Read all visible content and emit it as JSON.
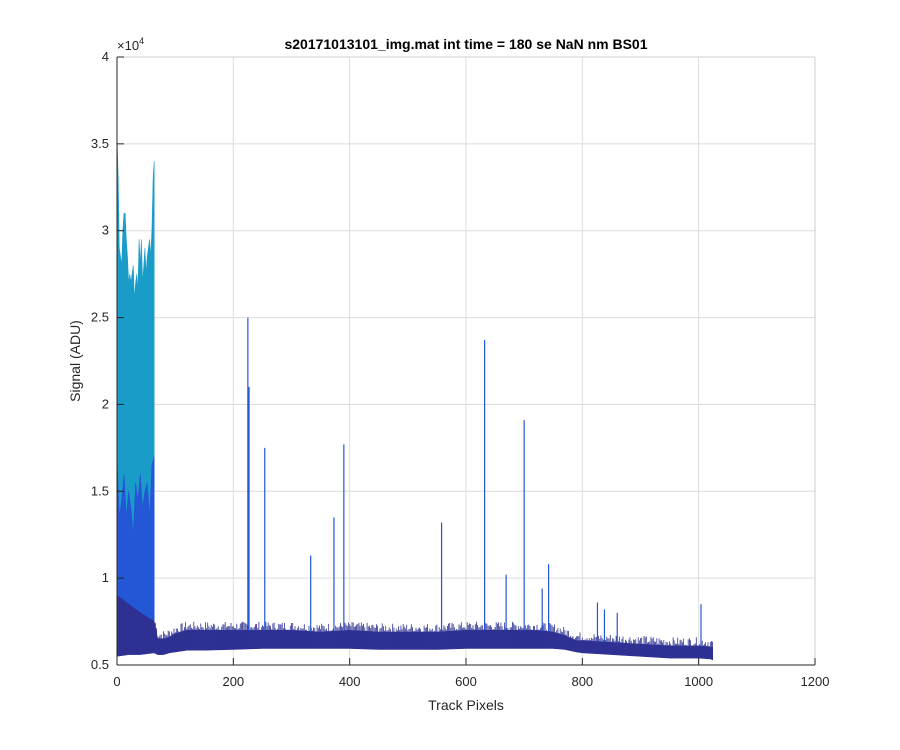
{
  "chart_data": {
    "type": "area",
    "title": "s20171013101_img.mat int time = 180 se  NaN nm BS01",
    "xlabel": "Track Pixels",
    "ylabel": "Signal (ADU)",
    "xlim": [
      0,
      1200
    ],
    "ylim": [
      5000,
      40000
    ],
    "x_ticks": [
      0,
      200,
      400,
      600,
      800,
      1000,
      1200
    ],
    "x_tick_labels": [
      "0",
      "200",
      "400",
      "600",
      "800",
      "1000",
      "1200"
    ],
    "y_ticks": [
      5000,
      10000,
      15000,
      20000,
      25000,
      30000,
      35000,
      40000
    ],
    "y_tick_labels": [
      "0.5",
      "1",
      "1.5",
      "2",
      "2.5",
      "3",
      "3.5",
      "4"
    ],
    "y_exponent": {
      "base": "×10",
      "power": "4"
    },
    "grid": true,
    "legend": "none",
    "colors": {
      "series_light": "#1a9cc9",
      "series_mid": "#2457d6",
      "series_dark": "#2e3192",
      "axis": "#262626",
      "grid": "#dcdcdc"
    },
    "series": [
      {
        "band": "light",
        "x": [
          0,
          2,
          4,
          6,
          8,
          10,
          12,
          14,
          16,
          18,
          20,
          22,
          24,
          26,
          28,
          30,
          32,
          34,
          36,
          38,
          40,
          42,
          44,
          46,
          48,
          50,
          52,
          54,
          56,
          58,
          60,
          62,
          64
        ],
        "low": [
          5600,
          5700,
          5650,
          5800,
          5700,
          5900,
          5750,
          5800,
          5700,
          5900,
          5750,
          5850,
          5700,
          5900,
          5800,
          5750,
          5900,
          5700,
          5850,
          5750,
          5900,
          5800,
          5700,
          5950,
          5750,
          5850,
          5800,
          5900,
          5750,
          5850,
          5900,
          6000,
          6100
        ],
        "high": [
          35500,
          33000,
          29000,
          28500,
          28000,
          30000,
          31000,
          31000,
          29500,
          28500,
          27000,
          27500,
          27000,
          27500,
          28000,
          26000,
          27000,
          27500,
          26500,
          29500,
          28000,
          29500,
          27000,
          28000,
          29000,
          27500,
          28500,
          29000,
          29500,
          28500,
          30000,
          33000,
          34000
        ]
      },
      {
        "band": "mid",
        "x": [
          0,
          4,
          8,
          12,
          16,
          20,
          24,
          28,
          32,
          36,
          40,
          44,
          48,
          52,
          56,
          60,
          64
        ],
        "low": [
          5800,
          5900,
          5900,
          6000,
          5950,
          6000,
          5900,
          6000,
          6000,
          5950,
          6000,
          5950,
          6000,
          5950,
          6000,
          6050,
          6100
        ],
        "high": [
          17000,
          13500,
          14500,
          16000,
          13500,
          15000,
          14000,
          12500,
          15500,
          14500,
          16000,
          14000,
          15000,
          15500,
          13500,
          16500,
          17000
        ]
      },
      {
        "band": "dark",
        "x": [
          0,
          20,
          40,
          64,
          70,
          80,
          90,
          100,
          120,
          150,
          200,
          250,
          300,
          350,
          400,
          450,
          500,
          550,
          600,
          650,
          700,
          720,
          750,
          770,
          790,
          800,
          850,
          900,
          950,
          1000,
          1020,
          1024
        ],
        "low": [
          5500,
          5600,
          5600,
          5700,
          5600,
          5600,
          5700,
          5750,
          5850,
          5850,
          5900,
          5950,
          5950,
          5950,
          5950,
          5900,
          5900,
          5900,
          5950,
          5950,
          5950,
          5950,
          5950,
          5900,
          5750,
          5700,
          5600,
          5500,
          5400,
          5400,
          5350,
          5300
        ],
        "high": [
          9000,
          8500,
          8000,
          7500,
          6500,
          6500,
          6600,
          6800,
          7000,
          7000,
          7000,
          7000,
          7000,
          6900,
          7000,
          6900,
          6900,
          6900,
          7000,
          7000,
          7000,
          7000,
          6900,
          6700,
          6400,
          6400,
          6300,
          6200,
          6100,
          6100,
          6050,
          6000
        ]
      }
    ],
    "spikes": [
      {
        "x": 225,
        "y": 25000
      },
      {
        "x": 227,
        "y": 21000
      },
      {
        "x": 254,
        "y": 17500
      },
      {
        "x": 333,
        "y": 11300
      },
      {
        "x": 373,
        "y": 13500
      },
      {
        "x": 390,
        "y": 17700
      },
      {
        "x": 558,
        "y": 13200
      },
      {
        "x": 632,
        "y": 23700
      },
      {
        "x": 669,
        "y": 10200
      },
      {
        "x": 700,
        "y": 19100
      },
      {
        "x": 731,
        "y": 9400
      },
      {
        "x": 742,
        "y": 10800
      },
      {
        "x": 826,
        "y": 8600
      },
      {
        "x": 838,
        "y": 8200
      },
      {
        "x": 860,
        "y": 8000
      },
      {
        "x": 1004,
        "y": 8500
      }
    ]
  }
}
